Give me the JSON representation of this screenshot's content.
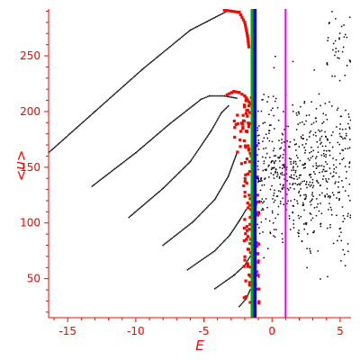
{
  "chart_data": {
    "type": "scatter",
    "xlabel": "E",
    "ylabel": "<n>",
    "xlim": [
      -16.4,
      5.8
    ],
    "ylim": [
      15,
      292
    ],
    "xticks": [
      -15,
      -10,
      -5,
      0,
      5
    ],
    "yticks": [
      50,
      100,
      150,
      200,
      250
    ],
    "colors": {
      "axes": "#ff0000",
      "background": "#ffffff",
      "black_series": "#000000",
      "red_series": "#ff0000",
      "green_line": "#00aa00",
      "blue_line": "#0000ff",
      "magenta_line": "#ee00ee"
    },
    "vertical_lines": [
      {
        "x": -1.45,
        "color": "#00aa00"
      },
      {
        "x": -1.25,
        "color": "#0000ff"
      },
      {
        "x": 1.0,
        "color": "#ee00ee"
      }
    ],
    "series": [
      {
        "marker": "small-dot",
        "color": "#000000",
        "segments": [
          [
            [
              -16.4,
              163
            ],
            [
              -13,
              200
            ],
            [
              -9.5,
              238
            ],
            [
              -6,
              273
            ],
            [
              -3.3,
              290
            ]
          ],
          [
            [
              -13.2,
              133
            ],
            [
              -10,
              163
            ],
            [
              -7.5,
              189
            ],
            [
              -5.2,
              211
            ],
            [
              -4.6,
              214
            ],
            [
              -3.5,
              214
            ],
            [
              -2.6,
              212
            ]
          ],
          [
            [
              -10.5,
              105
            ],
            [
              -8,
              131
            ],
            [
              -6,
              155
            ],
            [
              -4.5,
              182
            ],
            [
              -3.7,
              199
            ],
            [
              -3.2,
              205
            ]
          ],
          [
            [
              -8,
              80
            ],
            [
              -5.8,
              101
            ],
            [
              -4.2,
              121
            ],
            [
              -3.2,
              142
            ],
            [
              -2.6,
              162
            ]
          ],
          [
            [
              -6.2,
              58
            ],
            [
              -4.2,
              75
            ],
            [
              -3.1,
              89
            ],
            [
              -2.4,
              102
            ],
            [
              -1.9,
              112
            ]
          ],
          [
            [
              -4.2,
              41
            ],
            [
              -2.8,
              53
            ],
            [
              -2.0,
              62
            ],
            [
              -1.6,
              70
            ]
          ],
          [
            [
              -2.4,
              25
            ],
            [
              -1.9,
              32
            ],
            [
              -1.6,
              40
            ]
          ]
        ]
      },
      {
        "marker": "small-square",
        "color": "#ff0000",
        "segments": [
          [
            [
              -3.5,
              291
            ],
            [
              -2.4,
              289
            ],
            [
              -2.0,
              280
            ],
            [
              -1.8,
              268
            ],
            [
              -1.7,
              258
            ]
          ],
          [
            [
              -3.3,
              215
            ],
            [
              -2.8,
              218
            ],
            [
              -2.4,
              217
            ],
            [
              -2.0,
              214
            ],
            [
              -1.6,
              207
            ],
            [
              -1.3,
              205
            ]
          ]
        ]
      }
    ]
  }
}
